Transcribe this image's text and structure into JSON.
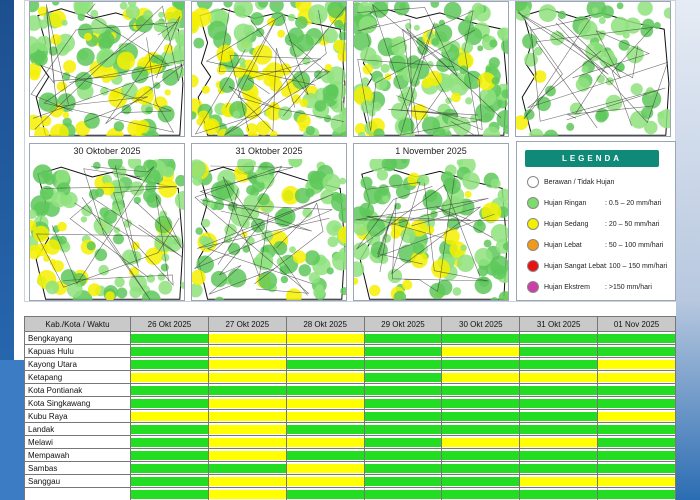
{
  "maps": [
    {
      "title": ""
    },
    {
      "title": ""
    },
    {
      "title": ""
    },
    {
      "title": ""
    },
    {
      "title": "30 Oktober 2025"
    },
    {
      "title": "31 Oktober 2025"
    },
    {
      "title": "1 November 2025"
    }
  ],
  "legend": {
    "title": "LEGENDA",
    "items": [
      {
        "label": "Berawan / Tidak Hujan",
        "range": "",
        "color": "#ffffff"
      },
      {
        "label": "Hujan Ringan",
        "range": ": 0.5 – 20 mm/hari",
        "color": "#7ddc6e"
      },
      {
        "label": "Hujan Sedang",
        "range": ": 20 – 50 mm/hari",
        "color": "#f4f000"
      },
      {
        "label": "Hujan Lebat",
        "range": ": 50 – 100 mm/hari",
        "color": "#f09a1a"
      },
      {
        "label": "Hujan Sangat Lebat",
        "range": ": 100 – 150 mm/hari",
        "color": "#e81010"
      },
      {
        "label": "Hujan Ekstrem",
        "range": ": >150 mm/hari",
        "color": "#cc3fa8"
      }
    ]
  },
  "table": {
    "header": [
      "Kab./Kota / Waktu",
      "26 Okt 2025",
      "27 Okt 2025",
      "28 Okt 2025",
      "29 Okt 2025",
      "30 Okt 2025",
      "31 Okt 2025",
      "01 Nov 2025"
    ],
    "rows": [
      {
        "name": "Bengkayang",
        "cells": [
          "G",
          "Y",
          "Y",
          "G",
          "G",
          "G",
          "G"
        ]
      },
      {
        "name": "Kapuas Hulu",
        "cells": [
          "G",
          "Y",
          "Y",
          "G",
          "Y",
          "G",
          "G"
        ]
      },
      {
        "name": "Kayong Utara",
        "cells": [
          "G",
          "Y",
          "G",
          "G",
          "G",
          "G",
          "Y"
        ]
      },
      {
        "name": "Ketapang",
        "cells": [
          "Y",
          "Y",
          "Y",
          "G",
          "Y",
          "Y",
          "Y"
        ]
      },
      {
        "name": "Kota Pontianak",
        "cells": [
          "G",
          "G",
          "G",
          "G",
          "G",
          "G",
          "G"
        ]
      },
      {
        "name": "Kota Singkawang",
        "cells": [
          "G",
          "Y",
          "Y",
          "G",
          "G",
          "G",
          "G"
        ]
      },
      {
        "name": "Kubu Raya",
        "cells": [
          "Y",
          "Y",
          "Y",
          "G",
          "G",
          "G",
          "Y"
        ]
      },
      {
        "name": "Landak",
        "cells": [
          "G",
          "Y",
          "G",
          "G",
          "G",
          "G",
          "G"
        ]
      },
      {
        "name": "Melawi",
        "cells": [
          "G",
          "Y",
          "Y",
          "G",
          "Y",
          "Y",
          "G"
        ]
      },
      {
        "name": "Mempawah",
        "cells": [
          "G",
          "Y",
          "G",
          "G",
          "G",
          "G",
          "G"
        ]
      },
      {
        "name": "Sambas",
        "cells": [
          "G",
          "G",
          "Y",
          "G",
          "G",
          "G",
          "G"
        ]
      },
      {
        "name": "Sanggau",
        "cells": [
          "G",
          "Y",
          "Y",
          "G",
          "G",
          "Y",
          "Y"
        ]
      },
      {
        "name": "",
        "cells": [
          "G",
          "Y",
          "G",
          "G",
          "G",
          "G",
          "G"
        ]
      }
    ]
  },
  "colors": {
    "G": "#22dd22",
    "Y": "#ffff00"
  }
}
